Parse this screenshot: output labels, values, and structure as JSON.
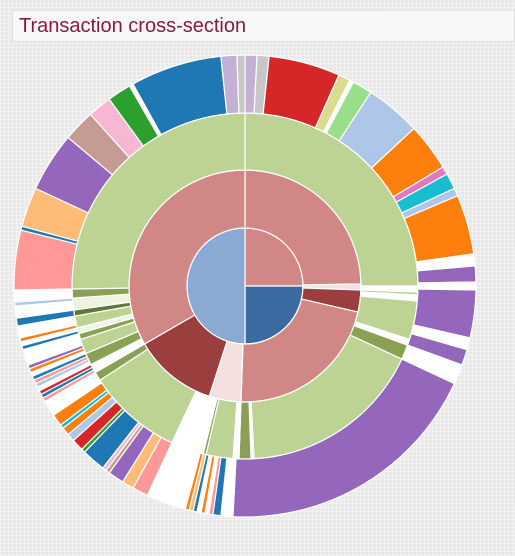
{
  "title": "Transaction cross-section",
  "chart_data": {
    "type": "sunburst",
    "title": "Transaction cross-section",
    "rings": [
      [
        {
          "from": 0,
          "to": 360,
          "color": "#8aa9d3"
        }
      ],
      [
        {
          "from": 0,
          "to": 90,
          "color": "#d18785"
        },
        {
          "from": 90,
          "to": 180,
          "color": "#3c6aa2"
        },
        {
          "from": 180,
          "to": 360,
          "color": "#8aa9d3"
        }
      ],
      [
        {
          "from": 0,
          "to": 89,
          "color": "#d18785"
        },
        {
          "from": 89,
          "to": 92,
          "color": "#f5e0e0"
        },
        {
          "from": 92,
          "to": 103,
          "color": "#9a3e3e"
        },
        {
          "from": 103,
          "to": 182,
          "color": "#d18785"
        },
        {
          "from": 182,
          "to": 198,
          "color": "#f5e0e0"
        },
        {
          "from": 198,
          "to": 240,
          "color": "#9a3e3e"
        },
        {
          "from": 240,
          "to": 360,
          "color": "#d18785"
        }
      ],
      [
        {
          "from": 0,
          "to": 90,
          "color": "#bcd394"
        },
        {
          "from": 90,
          "to": 92,
          "color": "#ffffff"
        },
        {
          "from": 92,
          "to": 93,
          "color": "#bcd394"
        },
        {
          "from": 93,
          "to": 95,
          "color": "#ffffff"
        },
        {
          "from": 95,
          "to": 108,
          "color": "#bcd394"
        },
        {
          "from": 108,
          "to": 110,
          "color": "#ffffff"
        },
        {
          "from": 110,
          "to": 115,
          "color": "#8aa054"
        },
        {
          "from": 115,
          "to": 177,
          "color": "#bcd394"
        },
        {
          "from": 177,
          "to": 178,
          "color": "#ffffff"
        },
        {
          "from": 178,
          "to": 182,
          "color": "#8aa054"
        },
        {
          "from": 182,
          "to": 184,
          "color": "#ffffff"
        },
        {
          "from": 184,
          "to": 193,
          "color": "#bcd394"
        },
        {
          "from": 193,
          "to": 194,
          "color": "#8aa054"
        },
        {
          "from": 194,
          "to": 205,
          "color": "#ffffff"
        },
        {
          "from": 205,
          "to": 237,
          "color": "#bcd394"
        },
        {
          "from": 237,
          "to": 240,
          "color": "#8aa054"
        },
        {
          "from": 240,
          "to": 243,
          "color": "#ffffff"
        },
        {
          "from": 243,
          "to": 247,
          "color": "#8aa054"
        },
        {
          "from": 247,
          "to": 252,
          "color": "#bcd394"
        },
        {
          "from": 252,
          "to": 254,
          "color": "#8aa054"
        },
        {
          "from": 254,
          "to": 256,
          "color": "#eef3e2"
        },
        {
          "from": 256,
          "to": 260,
          "color": "#bcd394"
        },
        {
          "from": 260,
          "to": 262,
          "color": "#5f7a35"
        },
        {
          "from": 262,
          "to": 266,
          "color": "#eef3e2"
        },
        {
          "from": 266,
          "to": 269,
          "color": "#8aa054"
        },
        {
          "from": 269,
          "to": 360,
          "color": "#bcd394"
        }
      ],
      [
        {
          "from": 0,
          "to": 3,
          "color": "#c5b0d5"
        },
        {
          "from": 3,
          "to": 6,
          "color": "#c7c7c7"
        },
        {
          "from": 6,
          "to": 24,
          "color": "#d62728"
        },
        {
          "from": 24,
          "to": 27,
          "color": "#dbdb8d"
        },
        {
          "from": 27,
          "to": 28,
          "color": "#ffffff"
        },
        {
          "from": 28,
          "to": 33,
          "color": "#98df8a"
        },
        {
          "from": 33,
          "to": 47,
          "color": "#aec7e8"
        },
        {
          "from": 47,
          "to": 59,
          "color": "#ff7f0e"
        },
        {
          "from": 59,
          "to": 61,
          "color": "#e377c2"
        },
        {
          "from": 61,
          "to": 65,
          "color": "#17becf"
        },
        {
          "from": 65,
          "to": 67,
          "color": "#aec7e8"
        },
        {
          "from": 67,
          "to": 82,
          "color": "#ff7f0e"
        },
        {
          "from": 82,
          "to": 85,
          "color": "#ffffff"
        },
        {
          "from": 85,
          "to": 89,
          "color": "#9467bd"
        },
        {
          "from": 89,
          "to": 91,
          "color": "#ffffff"
        },
        {
          "from": 91,
          "to": 103,
          "color": "#9467bd"
        },
        {
          "from": 103,
          "to": 106,
          "color": "#ffffff"
        },
        {
          "from": 106,
          "to": 110,
          "color": "#9467bd"
        },
        {
          "from": 110,
          "to": 115,
          "color": "#ffffff"
        },
        {
          "from": 115,
          "to": 183,
          "color": "#9467bd"
        },
        {
          "from": 183,
          "to": 186,
          "color": "#ffffff"
        },
        {
          "from": 186,
          "to": 188,
          "color": "#1f77b4"
        },
        {
          "from": 188,
          "to": 189,
          "color": "#ff9896"
        },
        {
          "from": 189,
          "to": 190,
          "color": "#ffffff"
        },
        {
          "from": 190,
          "to": 191,
          "color": "#ff7f0e"
        },
        {
          "from": 191,
          "to": 192,
          "color": "#ffffff"
        },
        {
          "from": 192,
          "to": 193,
          "color": "#1f77b4"
        },
        {
          "from": 193,
          "to": 194,
          "color": "#ffbb78"
        },
        {
          "from": 194,
          "to": 195,
          "color": "#ff7f0e"
        },
        {
          "from": 195,
          "to": 205,
          "color": "#ffffff"
        },
        {
          "from": 205,
          "to": 209,
          "color": "#ff9896"
        },
        {
          "from": 209,
          "to": 212,
          "color": "#ffbb78"
        },
        {
          "from": 212,
          "to": 216,
          "color": "#9467bd"
        },
        {
          "from": 216,
          "to": 217,
          "color": "#c49c94"
        },
        {
          "from": 217,
          "to": 218,
          "color": "#f7b6d2"
        },
        {
          "from": 218,
          "to": 224,
          "color": "#1f77b4"
        },
        {
          "from": 224,
          "to": 225,
          "color": "#2ca02c"
        },
        {
          "from": 225,
          "to": 228,
          "color": "#d62728"
        },
        {
          "from": 228,
          "to": 230,
          "color": "#aec7e8"
        },
        {
          "from": 230,
          "to": 232,
          "color": "#ff7f0e"
        },
        {
          "from": 232,
          "to": 233,
          "color": "#17becf"
        },
        {
          "from": 233,
          "to": 236,
          "color": "#ff7f0e"
        },
        {
          "from": 236,
          "to": 240,
          "color": "#ffffff"
        },
        {
          "from": 240,
          "to": 241,
          "color": "#ff9896"
        },
        {
          "from": 241,
          "to": 242,
          "color": "#1f77b4"
        },
        {
          "from": 242,
          "to": 243,
          "color": "#d62728"
        },
        {
          "from": 243,
          "to": 244,
          "color": "#ffffff"
        },
        {
          "from": 244,
          "to": 245,
          "color": "#aec7e8"
        },
        {
          "from": 245,
          "to": 246,
          "color": "#ff9896"
        },
        {
          "from": 246,
          "to": 247,
          "color": "#1f77b4"
        },
        {
          "from": 247,
          "to": 248,
          "color": "#ffffff"
        },
        {
          "from": 248,
          "to": 249,
          "color": "#ff7f0e"
        },
        {
          "from": 249,
          "to": 250,
          "color": "#9467bd"
        },
        {
          "from": 250,
          "to": 254,
          "color": "#ffffff"
        },
        {
          "from": 254,
          "to": 255,
          "color": "#1f77b4"
        },
        {
          "from": 255,
          "to": 256,
          "color": "#ffffff"
        },
        {
          "from": 256,
          "to": 257,
          "color": "#ff7f0e"
        },
        {
          "from": 257,
          "to": 260,
          "color": "#ffffff"
        },
        {
          "from": 260,
          "to": 262,
          "color": "#1f77b4"
        },
        {
          "from": 262,
          "to": 265,
          "color": "#ffffff"
        },
        {
          "from": 265,
          "to": 266,
          "color": "#aec7e8"
        },
        {
          "from": 266,
          "to": 269,
          "color": "#ffffff"
        },
        {
          "from": 269,
          "to": 284,
          "color": "#ff9896"
        },
        {
          "from": 284,
          "to": 285,
          "color": "#1f77b4"
        },
        {
          "from": 285,
          "to": 295,
          "color": "#ffbb78"
        },
        {
          "from": 295,
          "to": 310,
          "color": "#9467bd"
        },
        {
          "from": 310,
          "to": 318,
          "color": "#c49c94"
        },
        {
          "from": 318,
          "to": 324,
          "color": "#f7b6d2"
        },
        {
          "from": 324,
          "to": 330,
          "color": "#2ca02c"
        },
        {
          "from": 330,
          "to": 331,
          "color": "#ffffff"
        },
        {
          "from": 331,
          "to": 354,
          "color": "#1f77b4"
        },
        {
          "from": 354,
          "to": 358,
          "color": "#c5b0d5"
        },
        {
          "from": 358,
          "to": 360,
          "color": "#c7c7c7"
        }
      ]
    ]
  }
}
